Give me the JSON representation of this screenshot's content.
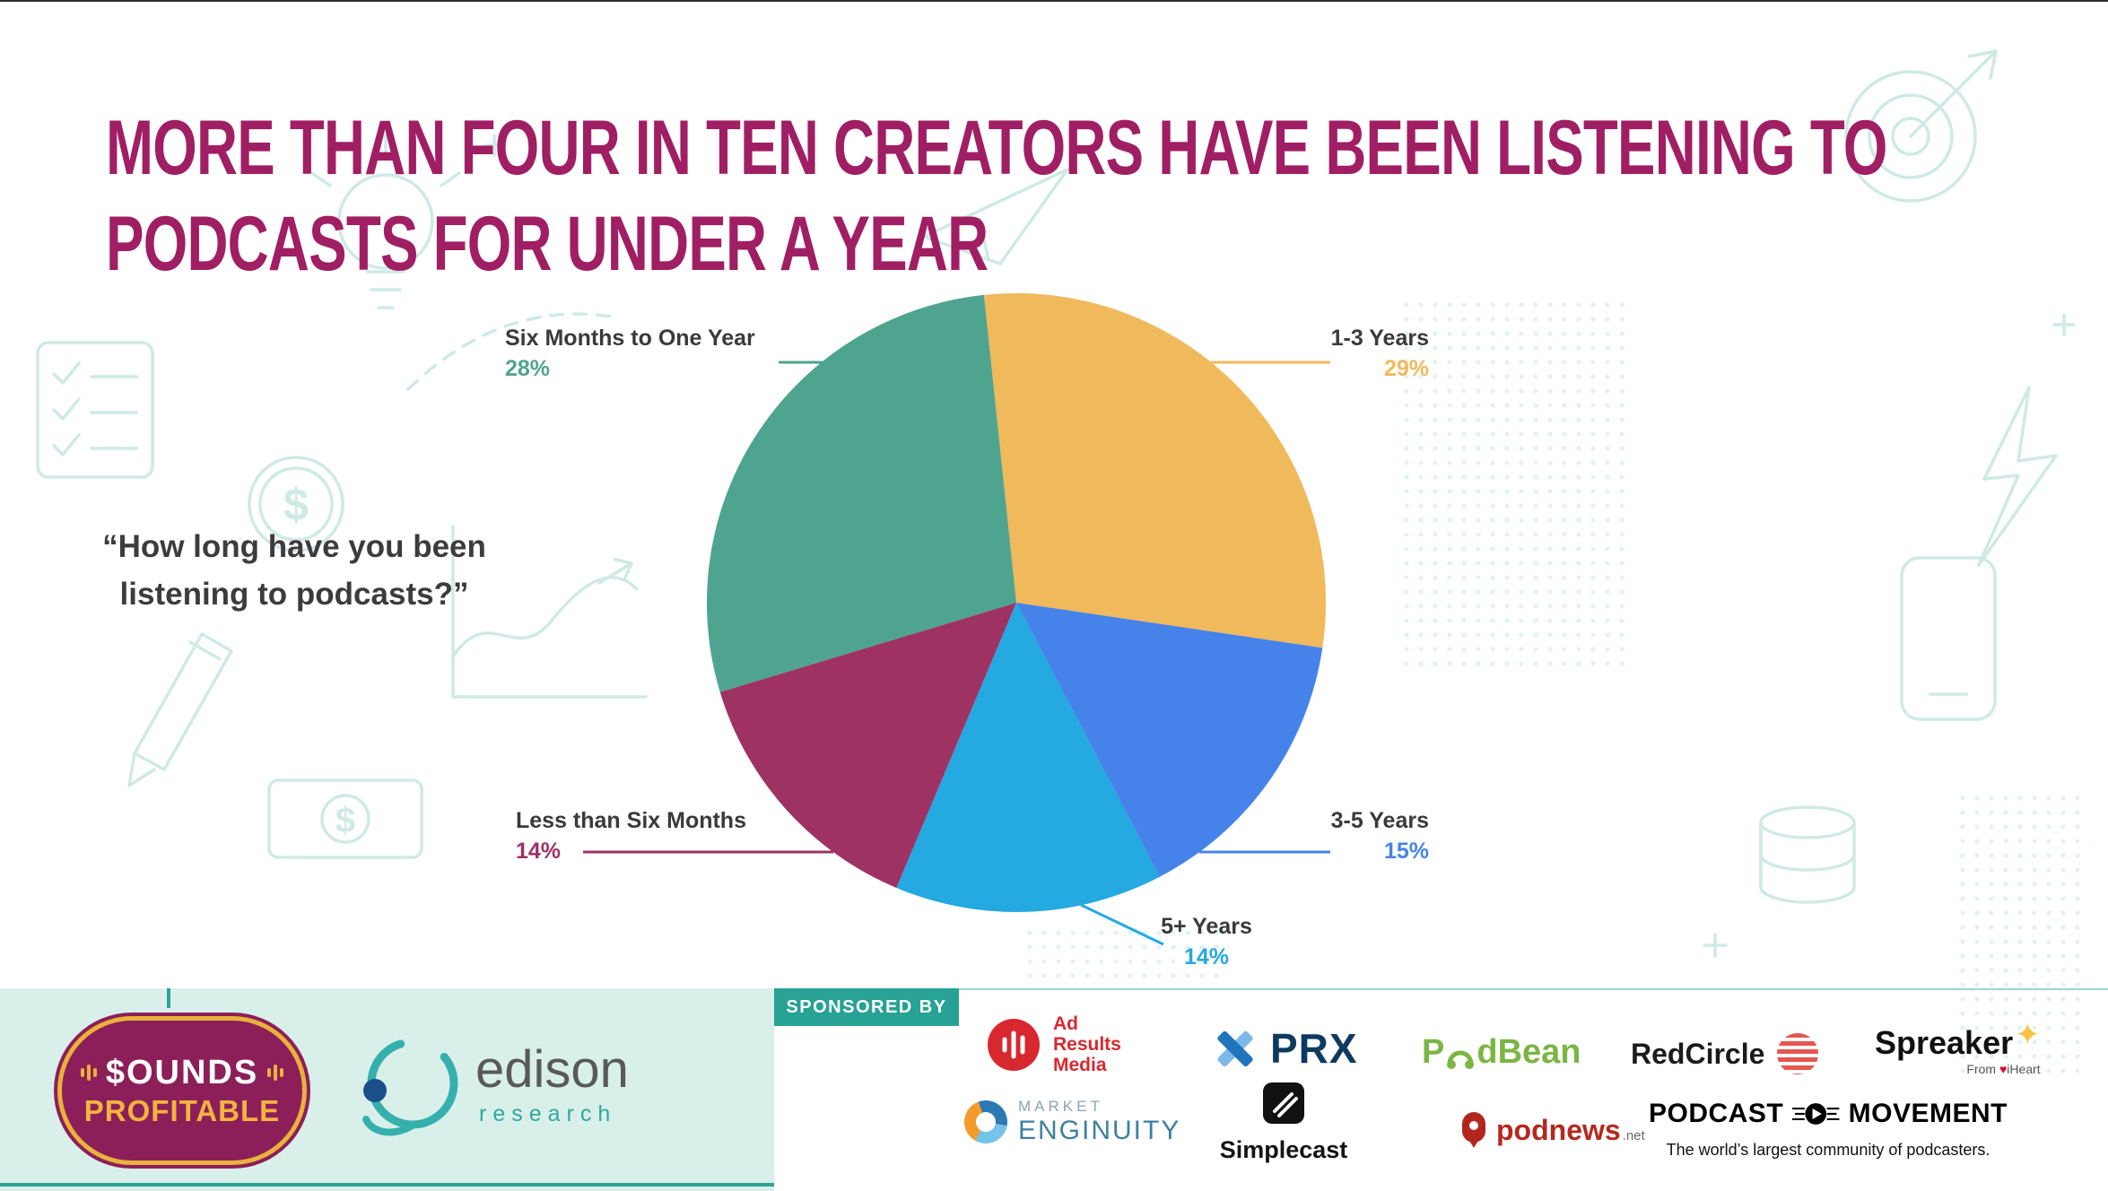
{
  "colors": {
    "title": "#A01E63",
    "accent_teal": "#2AA493",
    "mint_panel": "#D9EFEA",
    "doodle": "#CFEAE5",
    "text_dark": "#3A3A3A"
  },
  "header": {
    "title_line1": "MORE THAN FOUR IN TEN CREATORS HAVE BEEN LISTENING TO",
    "title_line2": "PODCASTS FOR UNDER A YEAR"
  },
  "question": {
    "line1": "“How long have you been",
    "line2": "listening to podcasts?”"
  },
  "chart_data": {
    "type": "pie",
    "title": "How long have you been listening to podcasts?",
    "direction": "clockwise",
    "start_angle_deg": -6,
    "legend": "callout-labels",
    "slices": [
      {
        "label": "1-3 Years",
        "value": 29,
        "color": "#F0B95C"
      },
      {
        "label": "3-5 Years",
        "value": 15,
        "color": "#4583EA"
      },
      {
        "label": "5+ Years",
        "value": 14,
        "color": "#24A9E1"
      },
      {
        "label": "Less than Six Months",
        "value": 14,
        "color": "#9E3263"
      },
      {
        "label": "Six Months to One Year",
        "value": 28,
        "color": "#4FA48F"
      }
    ]
  },
  "footer": {
    "sponsored_by_label": "SPONSORED BY",
    "brands": {
      "sounds_profitable": {
        "line1": "$OUNDS",
        "line2": "PROFITABLE"
      },
      "edison": {
        "name": "edison",
        "sub": "research"
      }
    },
    "sponsors": {
      "ad_results_media": {
        "lines": [
          "Ad",
          "Results",
          "Media"
        ],
        "icon": "soundwave-circle"
      },
      "prx": {
        "name": "PRX",
        "icon": "blue-x"
      },
      "podbean": {
        "prefix": "P",
        "suffix": "dBean",
        "icon": "headphones"
      },
      "redcircle": {
        "name": "RedCircle",
        "icon": "striped-red-circle"
      },
      "spreaker": {
        "name": "Spreaker",
        "sub_prefix": "From",
        "sub_brand": "iHeart",
        "icon": "yellow-star"
      },
      "market_enginuity": {
        "line1": "MARKET",
        "line2": "ENGINUITY",
        "icon": "multicolor-ring"
      },
      "simplecast": {
        "name": "Simplecast",
        "icon": "black-tile-slashes"
      },
      "podnews": {
        "name": "podnews",
        "tld": ".net",
        "icon": "red-pin"
      },
      "podcast_movement": {
        "word1": "PODCAST",
        "word2": "MOVEMENT",
        "tagline": "The world’s largest community of podcasters.",
        "icon": "winged-play-circle"
      }
    }
  },
  "decor": {
    "doodles": [
      "lightbulb",
      "checklist",
      "dollar-coin",
      "line-chart",
      "pencil",
      "banknote",
      "paper-plane",
      "dashed-curve",
      "target-arrow",
      "lightning",
      "smartphone",
      "coin-stack"
    ]
  }
}
